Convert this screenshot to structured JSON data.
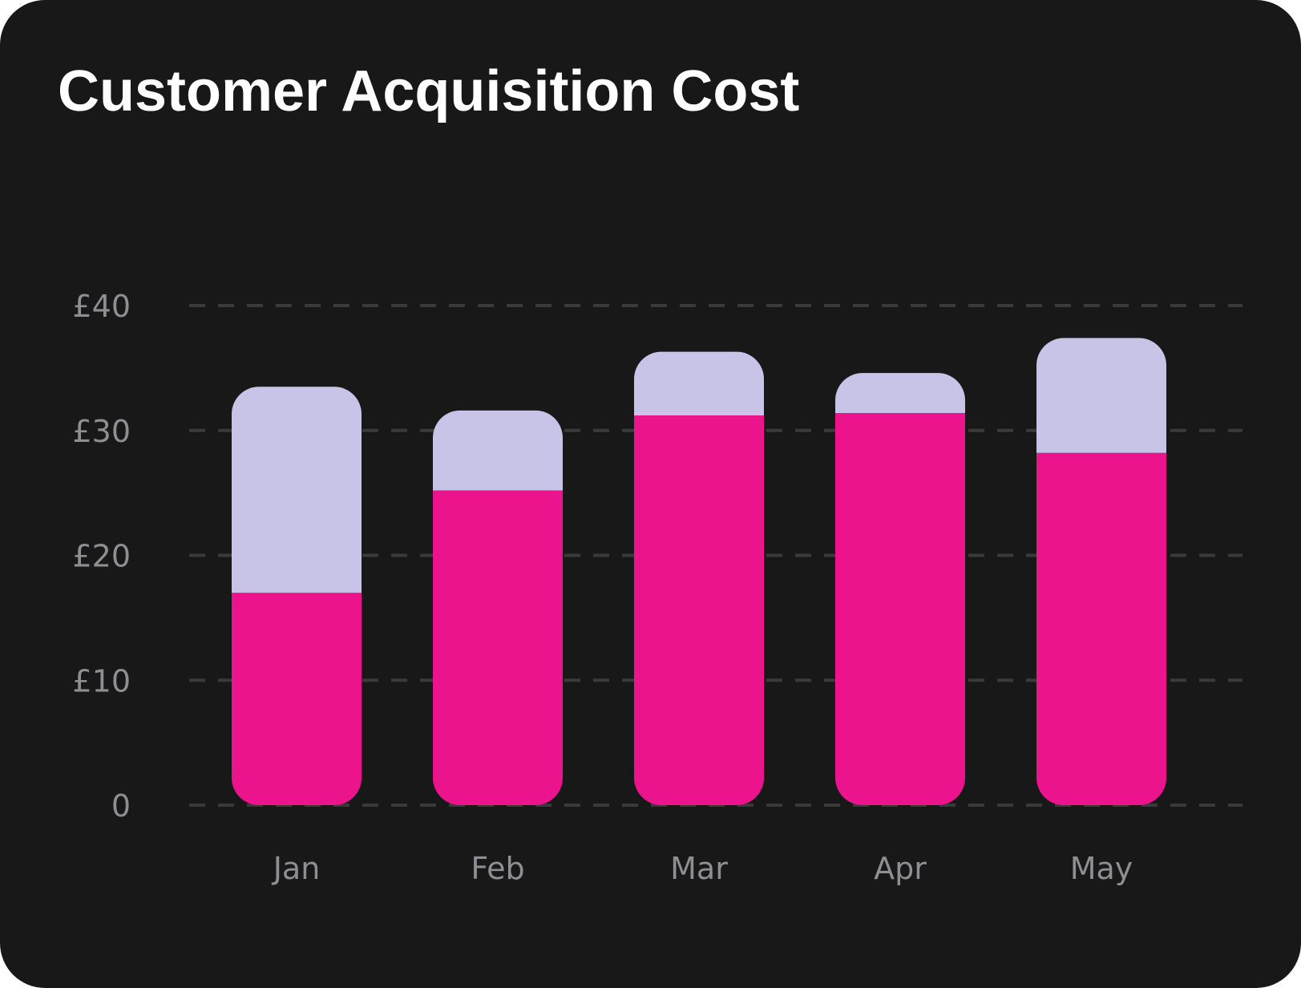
{
  "card": {
    "title": "Customer Acquisition Cost"
  },
  "chart_data": {
    "type": "bar",
    "stacked": true,
    "title": "Customer Acquisition Cost",
    "xlabel": "",
    "ylabel": "",
    "categories": [
      "Jan",
      "Feb",
      "Mar",
      "Apr",
      "May"
    ],
    "series": [
      {
        "values": [
          17,
          25.2,
          31.2,
          31.4,
          28.2
        ],
        "color": "#EB148C"
      },
      {
        "values": [
          16.5,
          6.4,
          5.1,
          3.2,
          9.2
        ],
        "color": "#C8C4E8"
      }
    ],
    "ylim": [
      0,
      40
    ],
    "y_ticks": [
      0,
      10,
      20,
      30,
      40
    ],
    "y_tick_labels": [
      "0",
      "£10",
      "£20",
      "£30",
      "£40"
    ],
    "grid": true,
    "legend": "none",
    "colors": {
      "background": "#181818",
      "grid": "#3a3a3a",
      "tick_text": "#8e8e93",
      "title": "#ffffff"
    }
  }
}
